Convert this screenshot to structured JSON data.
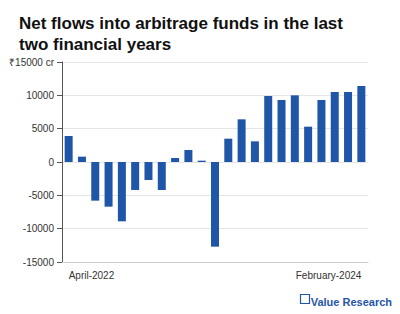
{
  "chart_data": {
    "type": "bar",
    "title": "Net flows into arbitrage funds in the last two financial years",
    "categories": [
      "April-2022",
      null,
      null,
      null,
      null,
      null,
      null,
      null,
      null,
      null,
      null,
      null,
      null,
      null,
      null,
      null,
      null,
      null,
      null,
      null,
      null,
      null,
      "February-2024"
    ],
    "values": [
      3900,
      800,
      -5800,
      -6700,
      -8900,
      -4200,
      -2700,
      -4200,
      600,
      1800,
      200,
      -12700,
      3500,
      6400,
      3100,
      9900,
      9300,
      10000,
      5300,
      9300,
      10500,
      10500,
      11400
    ],
    "color": "#1f56a8",
    "ylim": [
      -15000,
      15000
    ],
    "yticks": [
      -15000,
      -10000,
      -5000,
      0,
      5000,
      10000,
      {
        "value": 15000,
        "label": "₹15000 cr"
      }
    ],
    "grid": true,
    "annotation": "Value Research"
  }
}
